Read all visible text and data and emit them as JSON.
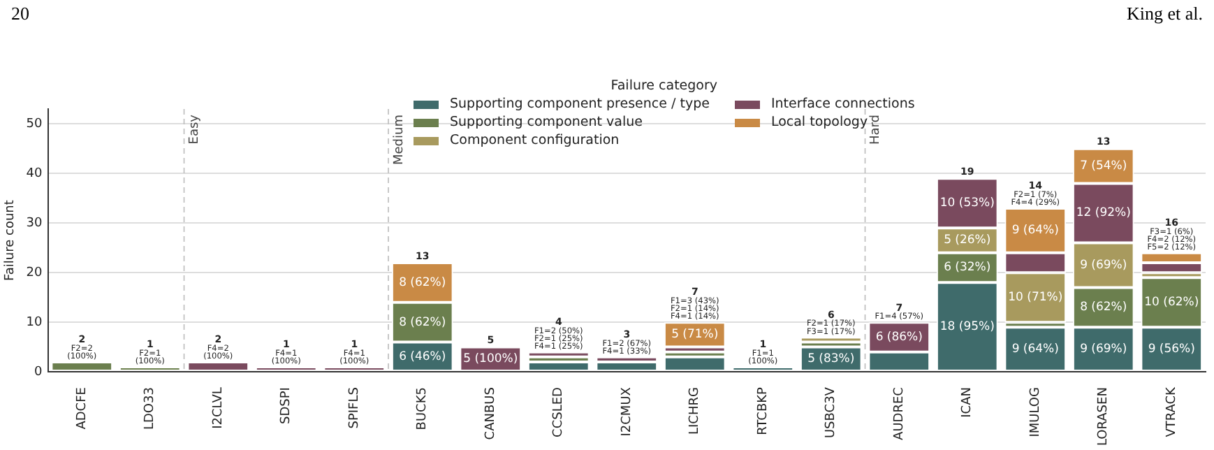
{
  "chart_data": {
    "type": "bar",
    "stacked": true,
    "ylabel": "Failure count",
    "legend_title": "Failure category",
    "legend": "top",
    "grid": "y",
    "categories": [
      "ADCFE",
      "LDO33",
      "I2CLVL",
      "SDSPI",
      "SPIFLS",
      "BUCK5",
      "CANBUS",
      "CCSLED",
      "I2CMUX",
      "LICHRG",
      "RTCBKP",
      "USBC3V",
      "AUDREC",
      "ICAN",
      "IMULOG",
      "LORASEN",
      "VTRACK"
    ],
    "ylim": [
      0,
      53
    ],
    "yticks": [
      0,
      10,
      20,
      30,
      40,
      50
    ],
    "series": [
      {
        "name": "Supporting component presence / type",
        "color": "#3f6b6b",
        "values": [
          0,
          0,
          0,
          0,
          0,
          6,
          0,
          2,
          2,
          3,
          1,
          5,
          4,
          18,
          9,
          9,
          9
        ],
        "value_labels": [
          null,
          null,
          null,
          null,
          null,
          "6 (46%)",
          null,
          null,
          null,
          null,
          null,
          "5 (83%)",
          null,
          "18 (95%)",
          "9 (64%)",
          "9 (69%)",
          "9 (56%)"
        ]
      },
      {
        "name": "Supporting component value",
        "color": "#6b7f4e",
        "values": [
          2,
          1,
          0,
          0,
          0,
          8,
          0,
          1,
          0,
          1,
          0,
          1,
          0,
          6,
          1,
          8,
          10
        ],
        "value_labels": [
          null,
          null,
          null,
          null,
          null,
          "8 (62%)",
          null,
          null,
          null,
          null,
          null,
          null,
          null,
          "6 (32%)",
          null,
          "8 (62%)",
          "10 (62%)"
        ]
      },
      {
        "name": "Component configuration",
        "color": "#a89a5e",
        "values": [
          0,
          0,
          0,
          0,
          0,
          0,
          0,
          0,
          0,
          0,
          0,
          1,
          0,
          5,
          10,
          9,
          1
        ],
        "value_labels": [
          null,
          null,
          null,
          null,
          null,
          null,
          null,
          null,
          null,
          null,
          null,
          null,
          null,
          "5 (26%)",
          "10 (71%)",
          "9 (69%)",
          null
        ]
      },
      {
        "name": "Interface connections",
        "color": "#7a4a5e",
        "values": [
          0,
          0,
          2,
          1,
          1,
          0,
          5,
          1,
          1,
          1,
          0,
          0,
          6,
          10,
          4,
          12,
          2
        ],
        "value_labels": [
          null,
          null,
          null,
          null,
          null,
          null,
          "5 (100%)",
          null,
          null,
          null,
          null,
          null,
          "6 (86%)",
          "10 (53%)",
          null,
          "12 (92%)",
          null
        ]
      },
      {
        "name": "Local topology",
        "color": "#c98a45",
        "values": [
          0,
          0,
          0,
          0,
          0,
          8,
          0,
          0,
          0,
          5,
          0,
          0,
          0,
          0,
          9,
          7,
          2
        ],
        "value_labels": [
          null,
          null,
          null,
          null,
          null,
          "8 (62%)",
          null,
          null,
          null,
          "5 (71%)",
          null,
          null,
          null,
          null,
          "9 (64%)",
          "7 (54%)",
          null
        ]
      }
    ],
    "annotations": [
      "20",
      "King et al.",
      "Easy",
      "Medium",
      "Hard",
      {
        "text": "2",
        "x": "ADCFE",
        "y": 2
      },
      {
        "text": "F2=2",
        "x": "ADCFE",
        "y": 2
      },
      {
        "text": "(100%)",
        "x": "ADCFE",
        "y": 2
      },
      {
        "text": "1",
        "x": "LDO33",
        "y": 1
      },
      {
        "text": "F2=1",
        "x": "LDO33",
        "y": 1
      },
      {
        "text": "(100%)",
        "x": "LDO33",
        "y": 1
      },
      {
        "text": "2",
        "x": "I2CLVL",
        "y": 2
      },
      {
        "text": "F4=2",
        "x": "I2CLVL",
        "y": 2
      },
      {
        "text": "(100%)",
        "x": "I2CLVL",
        "y": 2
      },
      {
        "text": "1",
        "x": "SDSPI",
        "y": 1
      },
      {
        "text": "F4=1",
        "x": "SDSPI",
        "y": 1
      },
      {
        "text": "(100%)",
        "x": "SDSPI",
        "y": 1
      },
      {
        "text": "1",
        "x": "SPIFLS",
        "y": 1
      },
      {
        "text": "F4=1",
        "x": "SPIFLS",
        "y": 1
      },
      {
        "text": "(100%)",
        "x": "SPIFLS",
        "y": 1
      },
      {
        "text": "13",
        "x": "BUCK5",
        "y": 22
      },
      {
        "text": "5",
        "x": "CANBUS",
        "y": 5
      },
      {
        "text": "4",
        "x": "CCSLED",
        "y": 4
      },
      {
        "text": "F1=2 (50%)",
        "x": "CCSLED",
        "y": 4
      },
      {
        "text": "F2=1 (25%)",
        "x": "CCSLED",
        "y": 4
      },
      {
        "text": "F4=1 (25%)",
        "x": "CCSLED",
        "y": 4
      },
      {
        "text": "3",
        "x": "I2CMUX",
        "y": 3
      },
      {
        "text": "F1=2 (67%)",
        "x": "I2CMUX",
        "y": 3
      },
      {
        "text": "F4=1 (33%)",
        "x": "I2CMUX",
        "y": 3
      },
      {
        "text": "7",
        "x": "LICHRG",
        "y": 10
      },
      {
        "text": "F1=3 (43%)",
        "x": "LICHRG",
        "y": 10
      },
      {
        "text": "F2=1 (14%)",
        "x": "LICHRG",
        "y": 10
      },
      {
        "text": "F4=1 (14%)",
        "x": "LICHRG",
        "y": 10
      },
      {
        "text": "1",
        "x": "RTCBKP",
        "y": 1
      },
      {
        "text": "F1=1",
        "x": "RTCBKP",
        "y": 1
      },
      {
        "text": "(100%)",
        "x": "RTCBKP",
        "y": 1
      },
      {
        "text": "6",
        "x": "USBC3V",
        "y": 7
      },
      {
        "text": "F2=1 (17%)",
        "x": "USBC3V",
        "y": 7
      },
      {
        "text": "F3=1 (17%)",
        "x": "USBC3V",
        "y": 7
      },
      {
        "text": "7",
        "x": "AUDREC",
        "y": 10
      },
      {
        "text": "F1=4 (57%)",
        "x": "AUDREC",
        "y": 10
      },
      {
        "text": "19",
        "x": "ICAN",
        "y": 39
      },
      {
        "text": "14",
        "x": "IMULOG",
        "y": 33
      },
      {
        "text": "F2=1 (7%)",
        "x": "IMULOG",
        "y": 33
      },
      {
        "text": "F4=4 (29%)",
        "x": "IMULOG",
        "y": 33
      },
      {
        "text": "13",
        "x": "LORASEN",
        "y": 45
      },
      {
        "text": "16",
        "x": "VTRACK",
        "y": 24
      },
      {
        "text": "F3=1 (6%)",
        "x": "VTRACK",
        "y": 24
      },
      {
        "text": "F4=2 (12%)",
        "x": "VTRACK",
        "y": 24
      },
      {
        "text": "F5=2 (12%)",
        "x": "VTRACK",
        "y": 24
      }
    ]
  }
}
